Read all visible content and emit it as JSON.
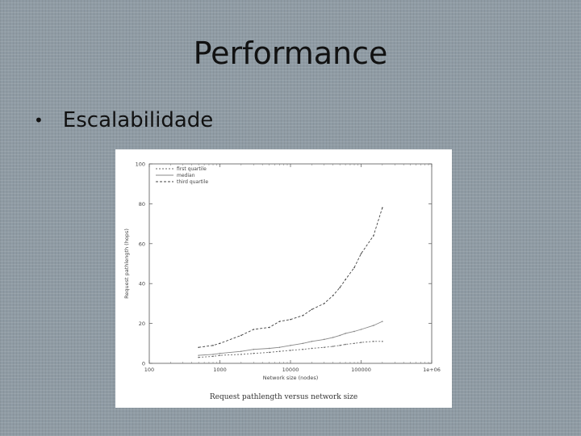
{
  "slide": {
    "title": "Performance",
    "bullet": "Escalabilidade"
  },
  "figure": {
    "caption": "Request pathlength versus network size"
  },
  "chart_data": {
    "type": "line",
    "xlabel": "Network size (nodes)",
    "ylabel": "Request pathlength (hops)",
    "xscale": "log",
    "xlim": [
      100,
      1000000
    ],
    "ylim": [
      0,
      100
    ],
    "xticks": [
      {
        "value": 100,
        "label": "100"
      },
      {
        "value": 1000,
        "label": "1000"
      },
      {
        "value": 10000,
        "label": "10000"
      },
      {
        "value": 100000,
        "label": "100000"
      },
      {
        "value": 1000000,
        "label": "1e+06"
      }
    ],
    "yticks": [
      {
        "value": 0,
        "label": "0"
      },
      {
        "value": 20,
        "label": "20"
      },
      {
        "value": 40,
        "label": "40"
      },
      {
        "value": 60,
        "label": "60"
      },
      {
        "value": 80,
        "label": "80"
      },
      {
        "value": 100,
        "label": "100"
      }
    ],
    "legend_position": "top-left",
    "x": [
      500,
      800,
      1000,
      2000,
      3000,
      5000,
      7000,
      10000,
      15000,
      20000,
      30000,
      40000,
      50000,
      60000,
      80000,
      100000,
      150000,
      200000
    ],
    "series": [
      {
        "name": "first quartile",
        "color": "#666666",
        "dash": "2,2",
        "values": [
          3,
          3.5,
          4,
          4.5,
          5,
          5.5,
          6,
          6.5,
          7,
          7.5,
          8,
          8.5,
          9,
          9.5,
          10,
          10.5,
          11,
          11
        ]
      },
      {
        "name": "median",
        "color": "#888888",
        "dash": "",
        "values": [
          4,
          4.5,
          5,
          6,
          7,
          7.5,
          8,
          9,
          10,
          11,
          12,
          13,
          14,
          15,
          16,
          17,
          19,
          21
        ]
      },
      {
        "name": "third quartile",
        "color": "#444444",
        "dash": "3,2",
        "values": [
          8,
          9,
          10,
          14,
          17,
          18,
          21,
          22,
          24,
          27,
          30,
          34,
          38,
          42,
          48,
          55,
          64,
          78
        ]
      }
    ]
  }
}
